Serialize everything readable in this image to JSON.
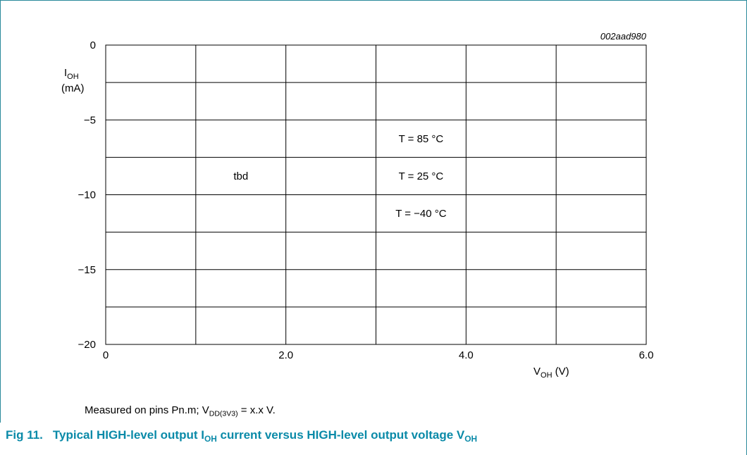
{
  "chart_data": {
    "type": "line",
    "figure_id": "002aad980",
    "xlim": [
      0,
      6.0
    ],
    "ylim": [
      -20,
      0
    ],
    "x_ticks": [
      {
        "value": 0,
        "label": "0"
      },
      {
        "value": 2.0,
        "label": "2.0"
      },
      {
        "value": 4.0,
        "label": "4.0"
      },
      {
        "value": 6.0,
        "label": "6.0"
      }
    ],
    "y_ticks": [
      {
        "value": 0,
        "label": "0"
      },
      {
        "value": -5,
        "label": "−5"
      },
      {
        "value": -10,
        "label": "−10"
      },
      {
        "value": -15,
        "label": "−15"
      },
      {
        "value": -20,
        "label": "−20"
      }
    ],
    "x_grid": [
      0,
      1,
      2,
      3,
      4,
      5,
      6
    ],
    "y_grid": [
      0,
      -2.5,
      -5,
      -7.5,
      -10,
      -12.5,
      -15,
      -17.5,
      -20
    ],
    "grid": true,
    "xlabel": {
      "main": "V",
      "sub": "OH",
      "unit": " (V)"
    },
    "ylabel": {
      "main": "I",
      "sub": "OH",
      "unit": "(mA)"
    },
    "annotations": [
      {
        "text": "tbd",
        "x": 1.5,
        "y": -8.75
      },
      {
        "text": "T = 85 °C",
        "x": 3.5,
        "y": -6.25
      },
      {
        "text": "T = 25 °C",
        "x": 3.5,
        "y": -8.75
      },
      {
        "text": "T = −40 °C",
        "x": 3.5,
        "y": -11.25
      }
    ],
    "series": []
  },
  "note": {
    "prefix": "Measured on pins Pn.m; V",
    "sub": "DD(3V3)",
    "suffix": " = x.x V."
  },
  "caption": {
    "fig_label": "Fig 11.",
    "part1": "Typical HIGH-level output I",
    "sub1": "OH",
    "part2": " current versus HIGH-level output voltage V",
    "sub2": "OH"
  },
  "colors": {
    "frame": "#2a8a9a",
    "caption": "#0a8aa8",
    "grid": "#000000"
  }
}
